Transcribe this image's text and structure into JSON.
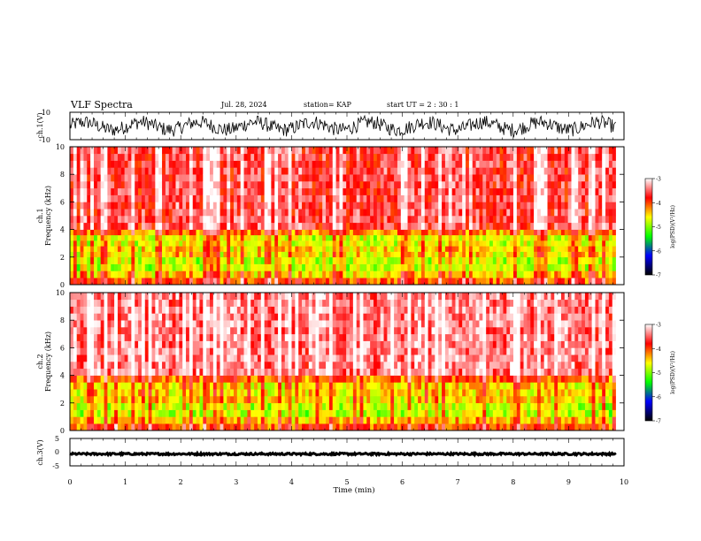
{
  "header": {
    "title": "VLF Spectra",
    "date": "Jul. 28, 2024",
    "station": "station= KAP",
    "start_ut": "start UT =  2 : 30 : 1"
  },
  "colorbar": {
    "label": "log(PSD)(V²/Hz)",
    "ticks": [
      "-3",
      "-4",
      "-5",
      "-6",
      "-7"
    ],
    "colors": [
      "#ffffff",
      "#ff0000",
      "#ffff00",
      "#00ff00",
      "#0000ff",
      "#000000"
    ]
  },
  "chart_data": [
    {
      "type": "line",
      "panel": "ch.1 waveform",
      "ylabel": "ch.1(V)",
      "yticks": [
        "10",
        "-10"
      ],
      "ylim": [
        -10,
        10
      ],
      "x_range_min": [
        0,
        9.85
      ],
      "signal_range_v": [
        -8,
        8
      ],
      "series_color": "#000000"
    },
    {
      "type": "heatmap",
      "panel": "ch.1 spectrogram",
      "ylabel": "ch.1\nFrequency (kHz)",
      "ylabel_line1": "ch.1",
      "ylabel_line2": "Frequency (kHz)",
      "yticks": [
        "0",
        "2",
        "4",
        "6",
        "8",
        "10"
      ],
      "ylim_khz": [
        0,
        10
      ],
      "x_range_min": [
        0,
        9.85
      ],
      "zlim_log_psd": [
        -7,
        -3
      ],
      "bands": [
        {
          "freq_khz": [
            0,
            0.5
          ],
          "level": -4.0
        },
        {
          "freq_khz": [
            0.5,
            1.0
          ],
          "level": -4.4
        },
        {
          "freq_khz": [
            1.0,
            2.0
          ],
          "level": -4.8
        },
        {
          "freq_khz": [
            2.0,
            2.8
          ],
          "level": -4.5
        },
        {
          "freq_khz": [
            2.8,
            3.6
          ],
          "level": -4.7
        },
        {
          "freq_khz": [
            3.6,
            4.0
          ],
          "level": -4.2
        },
        {
          "freq_khz": [
            4.0,
            10.0
          ],
          "level": -3.6
        }
      ]
    },
    {
      "type": "heatmap",
      "panel": "ch.2 spectrogram",
      "ylabel": "ch.2\nFrequency (kHz)",
      "ylabel_line1": "ch.2",
      "ylabel_line2": "Frequency (kHz)",
      "yticks": [
        "0",
        "2",
        "4",
        "6",
        "8",
        "10"
      ],
      "ylim_khz": [
        0,
        10
      ],
      "x_range_min": [
        0,
        9.85
      ],
      "zlim_log_psd": [
        -7,
        -3
      ],
      "bands": [
        {
          "freq_khz": [
            0,
            0.5
          ],
          "level": -4.0
        },
        {
          "freq_khz": [
            0.5,
            1.0
          ],
          "level": -4.4
        },
        {
          "freq_khz": [
            1.0,
            2.0
          ],
          "level": -4.8
        },
        {
          "freq_khz": [
            2.0,
            3.5
          ],
          "level": -4.5
        },
        {
          "freq_khz": [
            3.5,
            4.0
          ],
          "level": -4.1
        },
        {
          "freq_khz": [
            4.0,
            10.0
          ],
          "level": -3.4
        }
      ]
    },
    {
      "type": "line",
      "panel": "ch.3 waveform",
      "ylabel": "ch.3(V)",
      "yticks": [
        "5",
        "0",
        "-5"
      ],
      "ylim": [
        -5,
        5
      ],
      "x_range_min": [
        0,
        9.85
      ],
      "signal_range_v": [
        -1,
        -0.3
      ],
      "series_color": "#000000"
    }
  ],
  "xaxis": {
    "label": "Time (min)",
    "ticks": [
      "0",
      "1",
      "2",
      "3",
      "4",
      "5",
      "6",
      "7",
      "8",
      "9",
      "10"
    ],
    "xlim": [
      0,
      10
    ]
  }
}
